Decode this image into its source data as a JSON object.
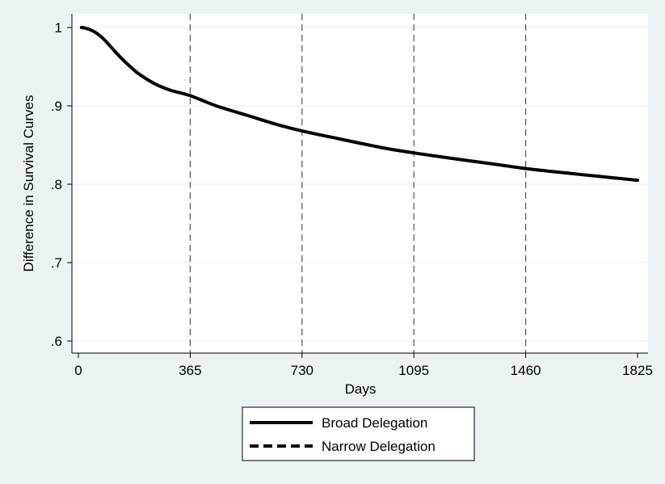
{
  "colors": {
    "background": "#eaf2f3",
    "plot_background": "#ffffff",
    "gridline": "#eaf2f3",
    "line": "#000000",
    "reference_line": "#555555"
  },
  "chart_data": {
    "type": "line",
    "title": "",
    "xlabel": "Days",
    "ylabel": "Difference in Survival Curves",
    "xlim": [
      0,
      1825
    ],
    "ylim": [
      0.6,
      1.0
    ],
    "x_ticks": [
      0,
      365,
      730,
      1095,
      1460,
      1825
    ],
    "x_tick_labels": [
      "0",
      "365",
      "730",
      "1095",
      "1460",
      "1825"
    ],
    "y_ticks": [
      0.6,
      0.7,
      0.8,
      0.9,
      1.0
    ],
    "y_tick_labels": [
      ".6",
      ".7",
      ".8",
      ".9",
      "1"
    ],
    "horizontal_grid": true,
    "reference_lines_x": [
      365,
      730,
      1095,
      1460
    ],
    "reference_line_style": "dashed",
    "legend_position": "bottom",
    "legend_entries": [
      {
        "label": "Broad Delegation",
        "style": "solid"
      },
      {
        "label": "Narrow Delegation",
        "style": "dashed"
      }
    ],
    "series": [
      {
        "name": "Broad Delegation",
        "style": "solid",
        "x": [
          10,
          25,
          50,
          75,
          100,
          125,
          150,
          175,
          200,
          250,
          300,
          365,
          450,
          550,
          650,
          730,
          850,
          1000,
          1095,
          1200,
          1350,
          1460,
          1600,
          1700,
          1825
        ],
        "y": [
          1.0,
          0.999,
          0.995,
          0.988,
          0.978,
          0.967,
          0.957,
          0.948,
          0.94,
          0.928,
          0.92,
          0.913,
          0.9,
          0.888,
          0.876,
          0.868,
          0.858,
          0.846,
          0.84,
          0.834,
          0.826,
          0.82,
          0.814,
          0.81,
          0.805
        ]
      },
      {
        "name": "Narrow Delegation",
        "style": "dashed",
        "x": [],
        "y": []
      }
    ]
  }
}
